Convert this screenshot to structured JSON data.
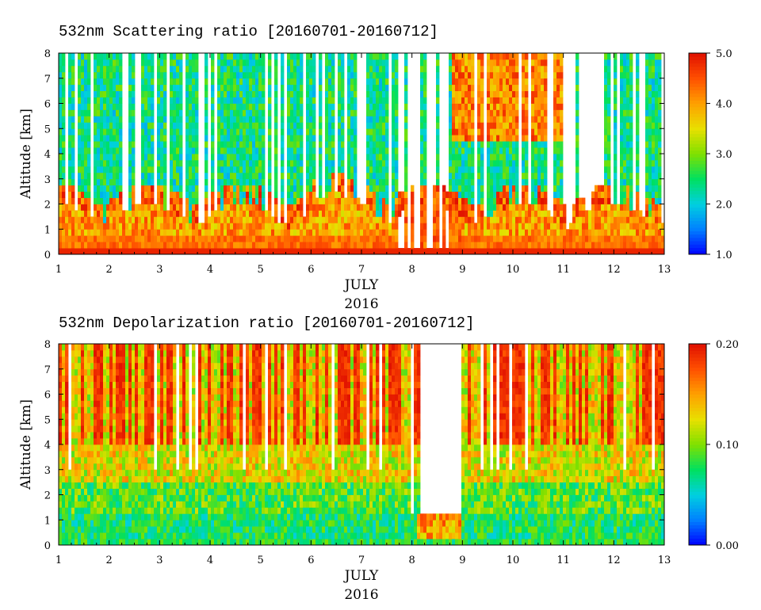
{
  "chart_data": [
    {
      "type": "heatmap",
      "title": "532nm Scattering ratio [20160701-20160712]",
      "xlabel": "JULY",
      "xlabel2": "2016",
      "ylabel": "Altitude [km]",
      "x_ticks": [
        "1",
        "2",
        "3",
        "4",
        "5",
        "6",
        "7",
        "8",
        "9",
        "10",
        "11",
        "12",
        "13"
      ],
      "y_ticks": [
        "0",
        "1",
        "2",
        "3",
        "4",
        "5",
        "6",
        "7",
        "8"
      ],
      "xlim": [
        1,
        13
      ],
      "ylim": [
        0,
        8
      ],
      "colorbar": {
        "min": 1.0,
        "max": 5.0,
        "ticks": [
          "1.0",
          "2.0",
          "3.0",
          "4.0",
          "5.0"
        ]
      },
      "colormap": [
        "#0000ff",
        "#0080ff",
        "#00d0e0",
        "#00e060",
        "#80e000",
        "#e8e000",
        "#ffa000",
        "#ff5000",
        "#e01000"
      ]
    },
    {
      "type": "heatmap",
      "title": "532nm Depolarization ratio [20160701-20160712]",
      "xlabel": "JULY",
      "xlabel2": "2016",
      "ylabel": "Altitude [km]",
      "x_ticks": [
        "1",
        "2",
        "3",
        "4",
        "5",
        "6",
        "7",
        "8",
        "9",
        "10",
        "11",
        "12",
        "13"
      ],
      "y_ticks": [
        "0",
        "1",
        "2",
        "3",
        "4",
        "5",
        "6",
        "7",
        "8"
      ],
      "xlim": [
        1,
        13
      ],
      "ylim": [
        0,
        8
      ],
      "colorbar": {
        "min": 0.0,
        "max": 0.2,
        "ticks": [
          "0.00",
          "0.10",
          "0.20"
        ]
      },
      "colormap": [
        "#0000ff",
        "#0080ff",
        "#00d0e0",
        "#00e060",
        "#80e000",
        "#e8e000",
        "#ffa000",
        "#ff5000",
        "#e01000"
      ]
    }
  ]
}
